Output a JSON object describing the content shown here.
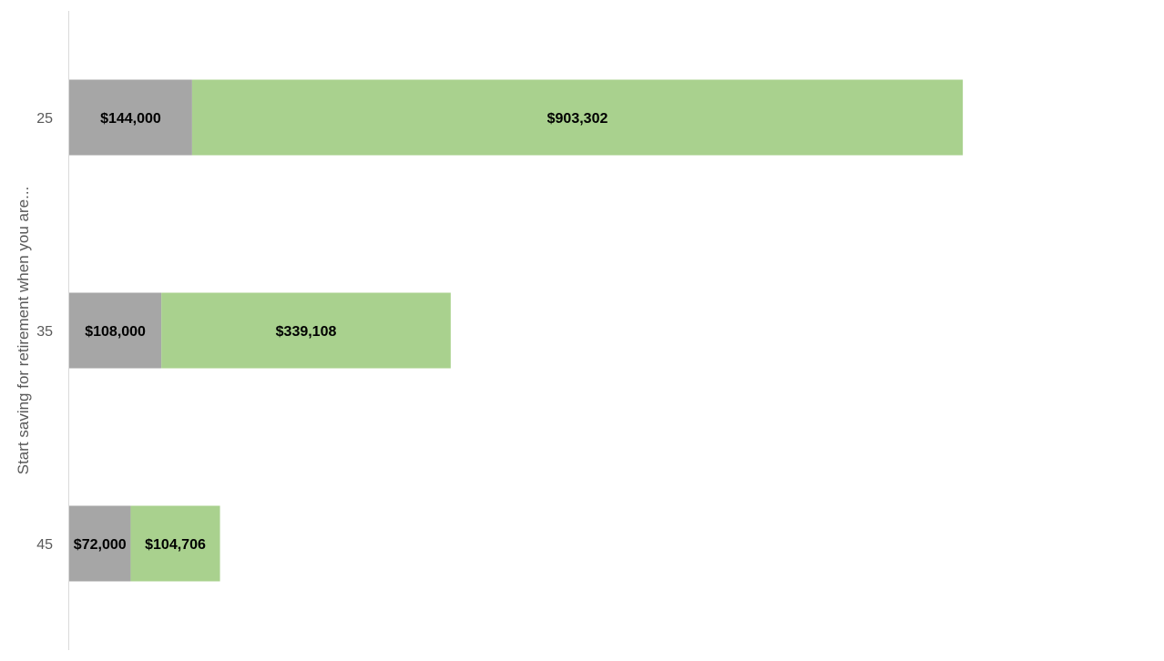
{
  "chart_data": {
    "type": "bar",
    "orientation": "horizontal",
    "stacked": true,
    "title": "",
    "xlabel": "",
    "ylabel": "Start saving for retirement when you are...",
    "categories": [
      "25",
      "35",
      "45"
    ],
    "series": [
      {
        "values": [
          144000,
          108000,
          72000
        ],
        "labels": [
          "$144,000",
          "$108,000",
          "$72,000"
        ],
        "color": "#a6a6a6"
      },
      {
        "values": [
          903302,
          339108,
          104706
        ],
        "labels": [
          "$903,302",
          "$339,108",
          "$104,706"
        ],
        "color": "#a9d18e"
      }
    ],
    "xlim": [
      0,
      1250000
    ],
    "grid": false,
    "legend": "none"
  }
}
